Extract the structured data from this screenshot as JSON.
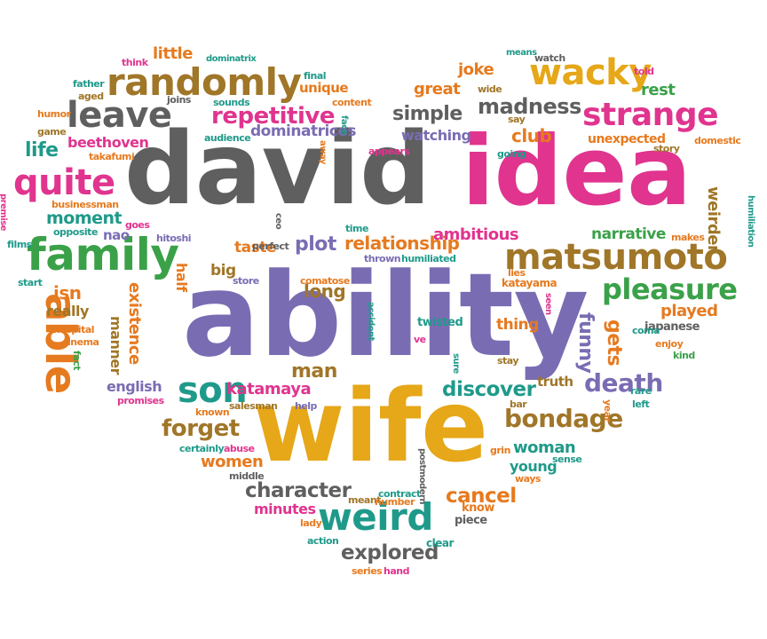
{
  "colors": {
    "gray": "#5f5f5f",
    "magenta": "#e0348f",
    "green": "#3aa148",
    "orange": "#e67a1f",
    "purple": "#7a6cb3",
    "gold": "#e6a718",
    "teal": "#1f9a8a",
    "brown": "#a07628",
    "red": "#d94b3b"
  },
  "words": [
    {
      "text": "david",
      "color": "gray"
    },
    {
      "text": "idea",
      "color": "magenta"
    },
    {
      "text": "ability",
      "color": "purple"
    },
    {
      "text": "wife",
      "color": "gold"
    },
    {
      "text": "family",
      "color": "green"
    },
    {
      "text": "matsumoto",
      "color": "brown"
    },
    {
      "text": "randomly",
      "color": "brown"
    },
    {
      "text": "wacky",
      "color": "gold"
    },
    {
      "text": "strange",
      "color": "magenta"
    },
    {
      "text": "leave",
      "color": "gray"
    },
    {
      "text": "quite",
      "color": "magenta"
    },
    {
      "text": "weird",
      "color": "teal"
    },
    {
      "text": "son",
      "color": "teal"
    },
    {
      "text": "able",
      "color": "orange"
    },
    {
      "text": "repetitive",
      "color": "magenta"
    },
    {
      "text": "pleasure",
      "color": "green"
    },
    {
      "text": "madness",
      "color": "gray"
    },
    {
      "text": "death",
      "color": "purple"
    },
    {
      "text": "bondage",
      "color": "brown"
    },
    {
      "text": "forget",
      "color": "brown"
    },
    {
      "text": "character",
      "color": "gray"
    },
    {
      "text": "explored",
      "color": "gray"
    },
    {
      "text": "discover",
      "color": "teal"
    },
    {
      "text": "cancel",
      "color": "orange"
    },
    {
      "text": "relationship",
      "color": "orange"
    },
    {
      "text": "plot",
      "color": "purple"
    },
    {
      "text": "long",
      "color": "brown"
    },
    {
      "text": "man",
      "color": "brown"
    },
    {
      "text": "simple",
      "color": "gray"
    },
    {
      "text": "club",
      "color": "orange"
    },
    {
      "text": "great",
      "color": "orange"
    },
    {
      "text": "joke",
      "color": "orange"
    },
    {
      "text": "life",
      "color": "teal"
    },
    {
      "text": "moment",
      "color": "teal"
    },
    {
      "text": "katamaya",
      "color": "magenta"
    },
    {
      "text": "existence",
      "color": "orange"
    },
    {
      "text": "manner",
      "color": "brown"
    },
    {
      "text": "funny",
      "color": "purple"
    },
    {
      "text": "gets",
      "color": "orange"
    },
    {
      "text": "played",
      "color": "orange"
    },
    {
      "text": "woman",
      "color": "teal"
    },
    {
      "text": "women",
      "color": "orange"
    },
    {
      "text": "minutes",
      "color": "magenta"
    },
    {
      "text": "young",
      "color": "teal"
    },
    {
      "text": "dominatrices",
      "color": "purple"
    },
    {
      "text": "ambitious",
      "color": "magenta"
    },
    {
      "text": "narrative",
      "color": "green"
    },
    {
      "text": "taste",
      "color": "orange"
    },
    {
      "text": "half",
      "color": "orange"
    },
    {
      "text": "big",
      "color": "brown"
    },
    {
      "text": "isn",
      "color": "orange"
    },
    {
      "text": "really",
      "color": "brown"
    },
    {
      "text": "english",
      "color": "purple"
    },
    {
      "text": "watching",
      "color": "purple"
    },
    {
      "text": "weirder",
      "color": "brown"
    },
    {
      "text": "rest",
      "color": "green"
    },
    {
      "text": "little",
      "color": "orange"
    },
    {
      "text": "beethoven",
      "color": "magenta"
    },
    {
      "text": "unique",
      "color": "orange"
    },
    {
      "text": "unexpected",
      "color": "orange"
    },
    {
      "text": "thing",
      "color": "orange"
    },
    {
      "text": "truth",
      "color": "brown"
    },
    {
      "text": "japanese",
      "color": "gray"
    },
    {
      "text": "katayama",
      "color": "orange"
    },
    {
      "text": "nao",
      "color": "purple"
    },
    {
      "text": "twisted",
      "color": "teal"
    },
    {
      "text": "know",
      "color": "orange"
    },
    {
      "text": "piece",
      "color": "gray"
    },
    {
      "text": "clear",
      "color": "teal"
    },
    {
      "text": "story",
      "color": "brown"
    },
    {
      "text": "humor",
      "color": "orange"
    },
    {
      "text": "game",
      "color": "brown"
    },
    {
      "text": "takafumi",
      "color": "orange"
    },
    {
      "text": "businessman",
      "color": "orange"
    },
    {
      "text": "opposite",
      "color": "teal"
    },
    {
      "text": "films",
      "color": "teal"
    },
    {
      "text": "start",
      "color": "teal"
    },
    {
      "text": "hospital",
      "color": "orange"
    },
    {
      "text": "cinema",
      "color": "orange"
    },
    {
      "text": "fact",
      "color": "green"
    },
    {
      "text": "promises",
      "color": "magenta"
    },
    {
      "text": "known",
      "color": "orange"
    },
    {
      "text": "salesman",
      "color": "brown"
    },
    {
      "text": "help",
      "color": "purple"
    },
    {
      "text": "certainly",
      "color": "teal"
    },
    {
      "text": "abuse",
      "color": "magenta"
    },
    {
      "text": "middle",
      "color": "gray"
    },
    {
      "text": "meant",
      "color": "brown"
    },
    {
      "text": "contract",
      "color": "teal"
    },
    {
      "text": "number",
      "color": "orange"
    },
    {
      "text": "postmodern",
      "color": "gray"
    },
    {
      "text": "lady",
      "color": "orange"
    },
    {
      "text": "action",
      "color": "teal"
    },
    {
      "text": "series",
      "color": "orange"
    },
    {
      "text": "hand",
      "color": "magenta"
    },
    {
      "text": "sure",
      "color": "teal"
    },
    {
      "text": "stay",
      "color": "brown"
    },
    {
      "text": "bar",
      "color": "brown"
    },
    {
      "text": "grin",
      "color": "orange"
    },
    {
      "text": "ways",
      "color": "orange"
    },
    {
      "text": "sense",
      "color": "teal"
    },
    {
      "text": "year",
      "color": "orange"
    },
    {
      "text": "left",
      "color": "teal"
    },
    {
      "text": "rare",
      "color": "teal"
    },
    {
      "text": "coma",
      "color": "teal"
    },
    {
      "text": "enjoy",
      "color": "orange"
    },
    {
      "text": "kind",
      "color": "green"
    },
    {
      "text": "makes",
      "color": "orange"
    },
    {
      "text": "humiliation",
      "color": "teal"
    },
    {
      "text": "domestic",
      "color": "orange"
    },
    {
      "text": "told",
      "color": "magenta"
    },
    {
      "text": "watch",
      "color": "gray"
    },
    {
      "text": "means",
      "color": "teal"
    },
    {
      "text": "wide",
      "color": "brown"
    },
    {
      "text": "say",
      "color": "brown"
    },
    {
      "text": "going",
      "color": "teal"
    },
    {
      "text": "appears",
      "color": "magenta"
    },
    {
      "text": "away",
      "color": "orange"
    },
    {
      "text": "face",
      "color": "teal"
    },
    {
      "text": "content",
      "color": "orange"
    },
    {
      "text": "final",
      "color": "teal"
    },
    {
      "text": "dominatrix",
      "color": "teal"
    },
    {
      "text": "think",
      "color": "magenta"
    },
    {
      "text": "father",
      "color": "teal"
    },
    {
      "text": "aged",
      "color": "brown"
    },
    {
      "text": "joins",
      "color": "gray"
    },
    {
      "text": "sounds",
      "color": "teal"
    },
    {
      "text": "audience",
      "color": "teal"
    },
    {
      "text": "premise",
      "color": "magenta"
    },
    {
      "text": "goes",
      "color": "magenta"
    },
    {
      "text": "hitoshi",
      "color": "purple"
    },
    {
      "text": "ceo",
      "color": "gray"
    },
    {
      "text": "time",
      "color": "teal"
    },
    {
      "text": "perfect",
      "color": "gray"
    },
    {
      "text": "store",
      "color": "purple"
    },
    {
      "text": "comatose",
      "color": "orange"
    },
    {
      "text": "thrown",
      "color": "purple"
    },
    {
      "text": "humiliated",
      "color": "teal"
    },
    {
      "text": "lies",
      "color": "orange"
    },
    {
      "text": "seen",
      "color": "magenta"
    },
    {
      "text": "accident",
      "color": "teal"
    },
    {
      "text": "ve",
      "color": "magenta"
    }
  ]
}
